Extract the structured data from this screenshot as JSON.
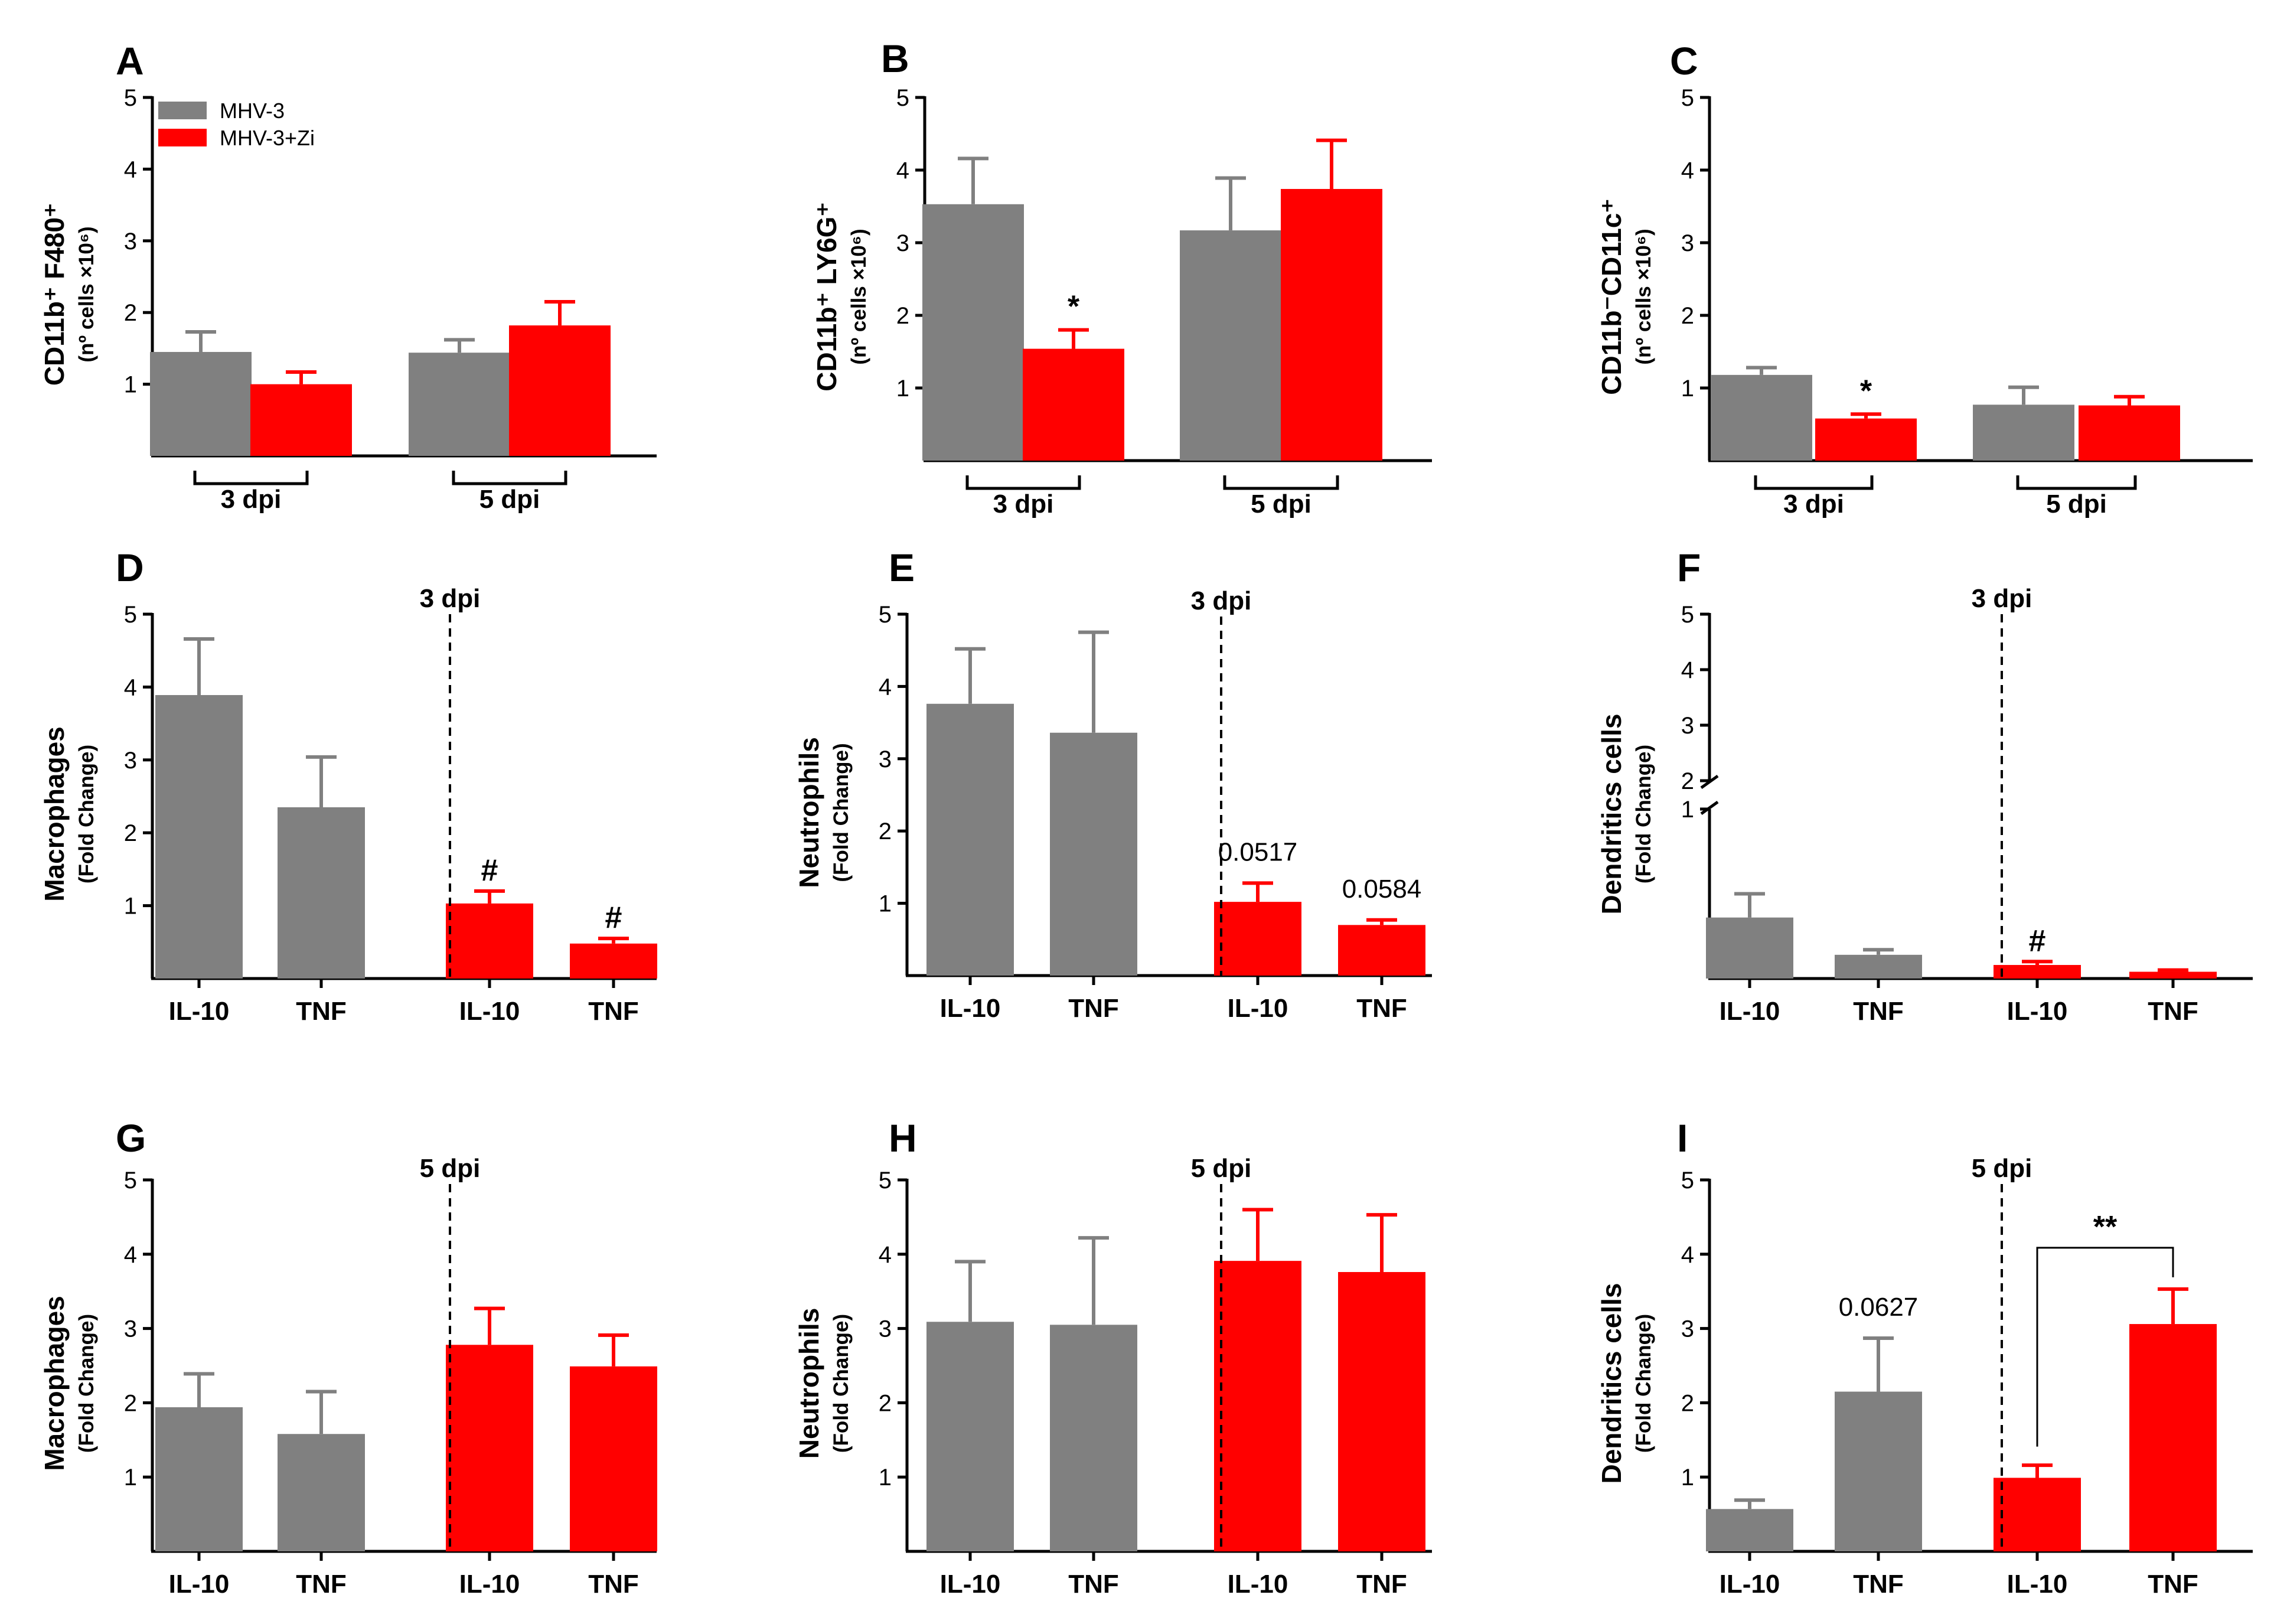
{
  "legend": [
    {
      "name": "MHV-3",
      "color": "#808080"
    },
    {
      "name": "MHV-3+Zi",
      "color": "#ff0000"
    }
  ],
  "colors": {
    "gray": "#808080",
    "red": "#ff0000",
    "axis": "#000000"
  },
  "chart_data": [
    {
      "panel": "A",
      "type": "bar",
      "ylabel_main": "CD11b⁺ F480⁺",
      "ylabel_sub": "(nº cells ×10⁶)",
      "ylim": [
        0,
        5
      ],
      "yticks": [
        1,
        2,
        3,
        4,
        5
      ],
      "groups": [
        "3 dpi",
        "5 dpi"
      ],
      "series": [
        {
          "name": "MHV-3",
          "values": [
            1.45,
            1.44
          ],
          "errors": [
            0.28,
            0.18
          ]
        },
        {
          "name": "MHV-3+Zi",
          "values": [
            1.0,
            1.82
          ],
          "errors": [
            0.17,
            0.33
          ]
        }
      ],
      "annotations": []
    },
    {
      "panel": "B",
      "type": "bar",
      "ylabel_main": "CD11b⁺ LY6G⁺",
      "ylabel_sub": "(nº cells ×10⁶)",
      "ylim": [
        0,
        5
      ],
      "yticks": [
        1,
        2,
        3,
        4,
        5
      ],
      "groups": [
        "3 dpi",
        "5 dpi"
      ],
      "series": [
        {
          "name": "MHV-3",
          "values": [
            3.53,
            3.17
          ],
          "errors": [
            0.63,
            0.72
          ]
        },
        {
          "name": "MHV-3+Zi",
          "values": [
            1.54,
            3.74
          ],
          "errors": [
            0.26,
            0.67
          ]
        }
      ],
      "annotations": [
        {
          "bar": 1,
          "text": "*"
        }
      ]
    },
    {
      "panel": "C",
      "type": "bar",
      "ylabel_main": "CD11b⁻CD11c⁺",
      "ylabel_sub": "(nº cells ×10⁶)",
      "ylim": [
        0,
        5
      ],
      "yticks": [
        1,
        2,
        3,
        4,
        5
      ],
      "groups": [
        "3 dpi",
        "5 dpi"
      ],
      "series": [
        {
          "name": "MHV-3",
          "values": [
            1.18,
            0.77
          ],
          "errors": [
            0.1,
            0.24
          ]
        },
        {
          "name": "MHV-3+Zi",
          "values": [
            0.58,
            0.76
          ],
          "errors": [
            0.06,
            0.12
          ]
        }
      ],
      "annotations": [
        {
          "bar": 1,
          "text": "*"
        }
      ]
    },
    {
      "panel": "D",
      "type": "bar",
      "ylabel_main": "Macrophages",
      "ylabel_sub": "(Fold Change)",
      "ylim": [
        0,
        5
      ],
      "yticks": [
        1,
        2,
        3,
        4,
        5
      ],
      "divider_label": "3 dpi",
      "categories": [
        "IL-10",
        "TNF",
        "IL-10",
        "TNF"
      ],
      "values": [
        3.89,
        2.35,
        1.03,
        0.48
      ],
      "errors": [
        0.77,
        0.69,
        0.17,
        0.07
      ],
      "annotations": [
        {
          "bar": 2,
          "text": "#"
        },
        {
          "bar": 3,
          "text": "#"
        }
      ]
    },
    {
      "panel": "E",
      "type": "bar",
      "ylabel_main": "Neutrophils",
      "ylabel_sub": "(Fold Change)",
      "ylim": [
        0,
        5
      ],
      "yticks": [
        1,
        2,
        3,
        4,
        5
      ],
      "divider_label": "3 dpi",
      "categories": [
        "IL-10",
        "TNF",
        "IL-10",
        "TNF"
      ],
      "values": [
        3.76,
        3.36,
        1.02,
        0.7
      ],
      "errors": [
        0.76,
        1.39,
        0.26,
        0.07
      ],
      "annotations": [
        {
          "bar": 2,
          "text": "0.0517"
        },
        {
          "bar": 3,
          "text": "0.0584"
        }
      ]
    },
    {
      "panel": "F",
      "type": "bar",
      "broken_axis": true,
      "ylabel_main": "Dendritics cells",
      "ylabel_sub": "(Fold Change)",
      "ylim_lower": [
        0,
        1
      ],
      "ylim_upper": [
        2,
        5
      ],
      "yticks": [
        1,
        2,
        3,
        4,
        5
      ],
      "divider_label": "3 dpi",
      "categories": [
        "IL-10",
        "TNF",
        "IL-10",
        "TNF"
      ],
      "values": [
        0.36,
        0.14,
        0.08,
        0.04
      ],
      "errors": [
        0.14,
        0.03,
        0.02,
        0.01
      ],
      "annotations": [
        {
          "bar": 2,
          "text": "#"
        }
      ]
    },
    {
      "panel": "G",
      "type": "bar",
      "ylabel_main": "Macrophages",
      "ylabel_sub": "(Fold Change)",
      "ylim": [
        0,
        5
      ],
      "yticks": [
        1,
        2,
        3,
        4,
        5
      ],
      "divider_label": "5 dpi",
      "categories": [
        "IL-10",
        "TNF",
        "IL-10",
        "TNF"
      ],
      "values": [
        1.94,
        1.58,
        2.78,
        2.49
      ],
      "errors": [
        0.45,
        0.57,
        0.49,
        0.42
      ],
      "annotations": []
    },
    {
      "panel": "H",
      "type": "bar",
      "ylabel_main": "Neutrophils",
      "ylabel_sub": "(Fold Change)",
      "ylim": [
        0,
        5
      ],
      "yticks": [
        1,
        2,
        3,
        4,
        5
      ],
      "divider_label": "5 dpi",
      "categories": [
        "IL-10",
        "TNF",
        "IL-10",
        "TNF"
      ],
      "values": [
        3.09,
        3.05,
        3.91,
        3.76
      ],
      "errors": [
        0.81,
        1.17,
        0.69,
        0.77
      ],
      "annotations": []
    },
    {
      "panel": "I",
      "type": "bar",
      "ylabel_main": "Dendritics cells",
      "ylabel_sub": "(Fold Change)",
      "ylim": [
        0,
        5
      ],
      "yticks": [
        1,
        2,
        3,
        4,
        5
      ],
      "divider_label": "5 dpi",
      "categories": [
        "IL-10",
        "TNF",
        "IL-10",
        "TNF"
      ],
      "values": [
        0.57,
        2.15,
        0.99,
        3.06
      ],
      "errors": [
        0.12,
        0.72,
        0.17,
        0.47
      ],
      "annotations": [
        {
          "bar": 1,
          "text": "0.0627"
        }
      ],
      "significance": {
        "from": 2,
        "to": 3,
        "text": "**"
      }
    }
  ]
}
